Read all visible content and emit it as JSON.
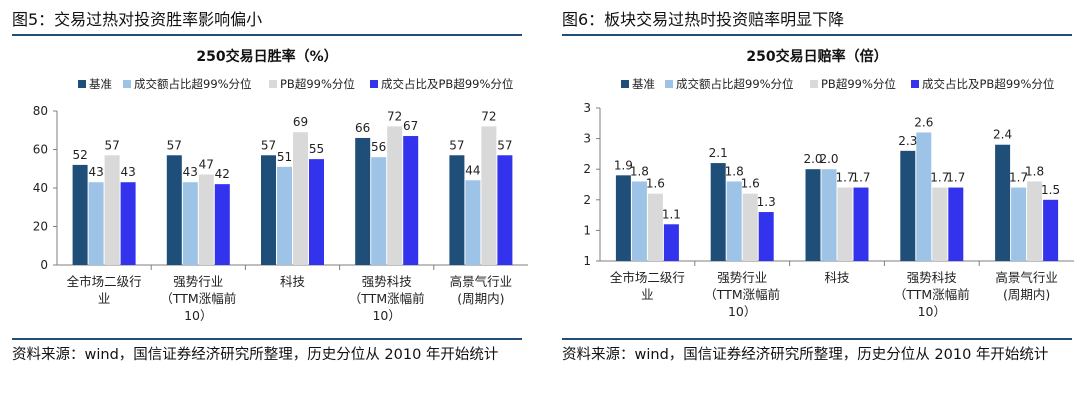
{
  "panels": [
    {
      "figure_title": "图5：交易过热对投资胜率影响偏小",
      "source_note": "资料来源：wind，国信证券经济研究所整理，历史分位从 2010 年开始统计"
    },
    {
      "figure_title": "图6：板块交易过热时投资赔率明显下降",
      "source_note": "资料来源：wind，国信证券经济研究所整理，历史分位从 2010 年开始统计"
    }
  ],
  "colors": {
    "series": [
      "#1f4e79",
      "#9dc3e6",
      "#d9d9d9",
      "#3333ee"
    ],
    "rule": "#1f4e79",
    "axis": "#7f7f7f"
  },
  "chart_data": [
    {
      "type": "bar",
      "title": "250交易日胜率（%）",
      "categories": [
        [
          "全市场二级行",
          "业"
        ],
        [
          "强势行业",
          "（TTM涨幅前",
          "10）"
        ],
        [
          "科技"
        ],
        [
          "强势科技",
          "（TTM涨幅前",
          "10）"
        ],
        [
          "高景气行业",
          "(周期内)"
        ]
      ],
      "series": [
        {
          "name": "基准",
          "values": [
            52,
            57,
            57,
            66,
            57
          ],
          "labels": [
            "52",
            "57",
            "57",
            "66",
            "57"
          ]
        },
        {
          "name": "成交额占比超99%分位",
          "values": [
            43,
            43,
            51,
            56,
            44
          ],
          "labels": [
            "43",
            "43",
            "51",
            "56",
            "44"
          ]
        },
        {
          "name": "PB超99%分位",
          "values": [
            57,
            47,
            69,
            72,
            72
          ],
          "labels": [
            "57",
            "47",
            "69",
            "72",
            "72"
          ]
        },
        {
          "name": "成交占比及PB超99%分位",
          "values": [
            43,
            42,
            55,
            67,
            57
          ],
          "labels": [
            "43",
            "42",
            "55",
            "67",
            "57"
          ]
        }
      ],
      "ylim": [
        0,
        80
      ],
      "yticks": [
        0,
        20,
        40,
        60,
        80
      ],
      "ytick_labels": [
        "0",
        "20",
        "40",
        "60",
        "80"
      ],
      "grid": false,
      "legend": "top"
    },
    {
      "type": "bar",
      "title": "250交易日赔率（倍）",
      "categories": [
        [
          "全市场二级行",
          "业"
        ],
        [
          "强势行业",
          "（TTM涨幅前",
          "10）"
        ],
        [
          "科技"
        ],
        [
          "强势科技",
          "（TTM涨幅前",
          "10）"
        ],
        [
          "高景气行业",
          "(周期内)"
        ]
      ],
      "series": [
        {
          "name": "基准",
          "values": [
            1.9,
            2.1,
            2.0,
            2.3,
            2.4
          ],
          "labels": [
            "1.9",
            "2.1",
            "2.0",
            "2.3",
            "2.4"
          ]
        },
        {
          "name": "成交额占比超99%分位",
          "values": [
            1.8,
            1.8,
            2.0,
            2.6,
            1.7
          ],
          "labels": [
            "1.8",
            "1.8",
            "2.0",
            "2.6",
            "1.7"
          ]
        },
        {
          "name": "PB超99%分位",
          "values": [
            1.6,
            1.6,
            1.7,
            1.7,
            1.8
          ],
          "labels": [
            "1.6",
            "1.6",
            "1.7",
            "1.7",
            "1.8"
          ]
        },
        {
          "name": "成交占比及PB超99%分位",
          "values": [
            1.1,
            1.3,
            1.7,
            1.7,
            1.5
          ],
          "labels": [
            "1.1",
            "1.3",
            "1.7",
            "1.7",
            "1.5"
          ]
        }
      ],
      "ylim": [
        0.5,
        3.0
      ],
      "yticks": [
        0.5,
        1.0,
        1.5,
        2.0,
        2.5,
        3.0
      ],
      "ytick_labels": [
        "1",
        "1",
        "2",
        "2",
        "3",
        "3"
      ],
      "grid": false,
      "legend": "top"
    }
  ]
}
